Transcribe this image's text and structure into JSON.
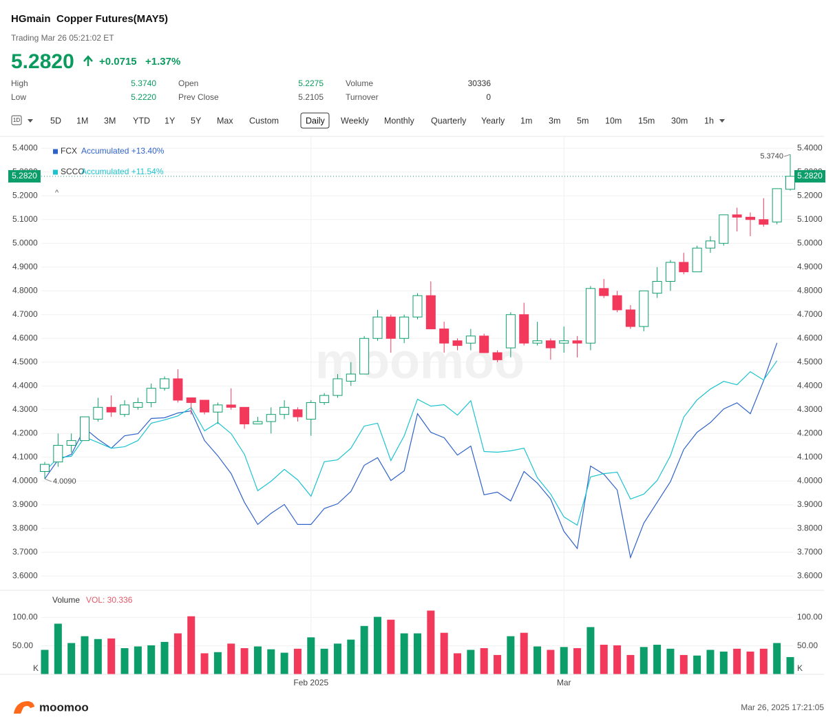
{
  "header": {
    "symbol": "HGmain",
    "name": "Copper Futures(MAY5)",
    "status": "Trading Mar 26 05:21:02 ET",
    "price": "5.2820",
    "change": "+0.0715",
    "change_pct": "+1.37%",
    "stats": [
      {
        "label": "High",
        "value": "5.3740",
        "color": "#0a9a5e"
      },
      {
        "label": "Open",
        "value": "5.2275",
        "color": "#0a9a5e"
      },
      {
        "label": "Volume",
        "value": "30336",
        "color": "#333333"
      },
      {
        "label": "Low",
        "value": "5.2220",
        "color": "#0a9a5e"
      },
      {
        "label": "Prev Close",
        "value": "5.2105",
        "color": "#555555"
      },
      {
        "label": "Turnover",
        "value": "0",
        "color": "#333333"
      }
    ]
  },
  "toolbar": {
    "icon": "1D",
    "ranges": [
      "5D",
      "1M",
      "3M",
      "YTD",
      "1Y",
      "5Y",
      "Max",
      "Custom"
    ],
    "intervals": [
      "Daily",
      "Weekly",
      "Monthly",
      "Quarterly",
      "Yearly",
      "1m",
      "3m",
      "5m",
      "10m",
      "15m",
      "30m",
      "1h"
    ],
    "active": "Daily"
  },
  "watermark": "moomoo",
  "footer": {
    "brand": "moomoo",
    "timestamp": "Mar 26, 2025 17:21:05"
  },
  "chart_data": [
    {
      "type": "candlestick",
      "categories": [
        null,
        null,
        null,
        null,
        null,
        null,
        null,
        null,
        null,
        null,
        null,
        null,
        null,
        null,
        null,
        null,
        null,
        null,
        null,
        null,
        "Feb 2025",
        null,
        null,
        null,
        null,
        null,
        null,
        null,
        null,
        null,
        null,
        null,
        null,
        null,
        null,
        null,
        null,
        null,
        null,
        "Mar",
        null,
        null,
        null,
        null,
        null,
        null,
        null,
        null,
        null,
        null,
        null,
        null,
        null,
        null,
        null,
        null,
        null
      ],
      "open": [
        4.04,
        4.08,
        4.15,
        4.17,
        4.26,
        4.31,
        4.28,
        4.31,
        4.33,
        4.39,
        4.43,
        4.35,
        4.34,
        4.29,
        4.32,
        4.31,
        4.24,
        4.25,
        4.28,
        4.3,
        4.26,
        4.33,
        4.36,
        4.42,
        4.45,
        4.6,
        4.69,
        4.6,
        4.69,
        4.78,
        4.64,
        4.59,
        4.58,
        4.61,
        4.54,
        4.56,
        4.7,
        4.58,
        4.59,
        4.58,
        4.59,
        4.58,
        4.81,
        4.78,
        4.72,
        4.65,
        4.79,
        4.84,
        4.92,
        4.88,
        4.98,
        5.0,
        5.12,
        5.11,
        5.1,
        5.09,
        5.2275
      ],
      "high": [
        4.08,
        4.2,
        4.2,
        4.27,
        4.35,
        4.36,
        4.34,
        4.35,
        4.41,
        4.44,
        4.47,
        4.35,
        4.34,
        4.33,
        4.39,
        4.31,
        4.27,
        4.31,
        4.34,
        4.31,
        4.34,
        4.37,
        4.45,
        4.5,
        4.61,
        4.72,
        4.7,
        4.7,
        4.79,
        4.84,
        4.67,
        4.6,
        4.64,
        4.62,
        4.55,
        4.71,
        4.75,
        4.67,
        4.6,
        4.65,
        4.61,
        4.82,
        4.85,
        4.8,
        4.74,
        4.8,
        4.9,
        4.93,
        4.96,
        4.99,
        5.03,
        5.12,
        5.15,
        5.13,
        5.19,
        5.23,
        5.374
      ],
      "low": [
        4.009,
        4.06,
        4.12,
        4.17,
        4.25,
        4.27,
        4.27,
        4.3,
        4.31,
        4.38,
        4.33,
        4.28,
        4.28,
        4.24,
        4.3,
        4.22,
        4.24,
        4.2,
        4.26,
        4.25,
        4.19,
        4.32,
        4.35,
        4.4,
        4.45,
        4.59,
        4.54,
        4.58,
        4.68,
        4.64,
        4.54,
        4.55,
        4.55,
        4.54,
        4.5,
        4.52,
        4.57,
        4.57,
        4.51,
        4.54,
        4.52,
        4.55,
        4.77,
        4.71,
        4.64,
        4.63,
        4.77,
        4.8,
        4.87,
        4.88,
        4.96,
        4.99,
        5.05,
        5.03,
        5.07,
        5.08,
        5.222
      ],
      "close": [
        4.07,
        4.15,
        4.17,
        4.27,
        4.31,
        4.29,
        4.32,
        4.33,
        4.39,
        4.43,
        4.34,
        4.33,
        4.29,
        4.32,
        4.31,
        4.24,
        4.25,
        4.28,
        4.31,
        4.27,
        4.33,
        4.36,
        4.43,
        4.45,
        4.6,
        4.69,
        4.6,
        4.69,
        4.78,
        4.64,
        4.58,
        4.57,
        4.61,
        4.54,
        4.51,
        4.7,
        4.58,
        4.59,
        4.56,
        4.59,
        4.58,
        4.81,
        4.78,
        4.72,
        4.65,
        4.8,
        4.84,
        4.92,
        4.88,
        4.98,
        5.01,
        5.12,
        5.11,
        5.1,
        5.08,
        5.23,
        5.282
      ],
      "up_color": "#0c9e6a",
      "down_color": "#f2395b",
      "series": [
        {
          "name": "FCX",
          "label": "Accumulated +13.40%",
          "color": "#2f62c8",
          "values": [
            4.009,
            4.089,
            4.112,
            4.222,
            4.176,
            4.138,
            4.19,
            4.199,
            4.263,
            4.266,
            4.286,
            4.295,
            4.17,
            4.106,
            4.031,
            3.91,
            3.817,
            3.864,
            3.901,
            3.817,
            3.817,
            3.884,
            3.904,
            3.956,
            4.066,
            4.098,
            4.002,
            4.043,
            4.283,
            4.205,
            4.182,
            4.109,
            4.147,
            3.942,
            3.953,
            3.916,
            4.04,
            3.991,
            3.924,
            3.788,
            3.716,
            4.063,
            4.028,
            3.962,
            3.678,
            3.823,
            3.91,
            3.997,
            4.133,
            4.205,
            4.246,
            4.303,
            4.329,
            4.283,
            4.422,
            4.581,
            null
          ]
        },
        {
          "name": "SCCO",
          "label": "Accumulated +11.54%",
          "color": "#1cc3cf",
          "values": [
            4.04,
            4.098,
            4.104,
            4.185,
            4.162,
            4.138,
            4.144,
            4.17,
            4.243,
            4.257,
            4.274,
            4.309,
            4.211,
            4.246,
            4.199,
            4.112,
            3.959,
            3.999,
            4.049,
            4.005,
            3.936,
            4.081,
            4.089,
            4.138,
            4.231,
            4.243,
            4.086,
            4.19,
            4.344,
            4.315,
            4.321,
            4.277,
            4.338,
            4.124,
            4.121,
            4.127,
            4.138,
            4.014,
            3.945,
            3.849,
            3.814,
            4.017,
            4.031,
            4.037,
            3.924,
            3.945,
            4.002,
            4.106,
            4.269,
            4.341,
            4.387,
            4.419,
            4.405,
            4.46,
            4.425,
            4.506,
            null
          ]
        }
      ],
      "ylim": [
        3.54,
        5.45
      ],
      "yticks": [
        {
          "value": 3.6,
          "label": "3.6000"
        },
        {
          "value": 3.7,
          "label": "3.7000"
        },
        {
          "value": 3.8,
          "label": "3.8000"
        },
        {
          "value": 3.9,
          "label": "3.9000"
        },
        {
          "value": 4.0,
          "label": "4.0000"
        },
        {
          "value": 4.1,
          "label": "4.1000"
        },
        {
          "value": 4.2,
          "label": "4.2000"
        },
        {
          "value": 4.3,
          "label": "4.3000"
        },
        {
          "value": 4.4,
          "label": "4.4000"
        },
        {
          "value": 4.5,
          "label": "4.5000"
        },
        {
          "value": 4.6,
          "label": "4.6000"
        },
        {
          "value": 4.7,
          "label": "4.7000"
        },
        {
          "value": 4.8,
          "label": "4.8000"
        },
        {
          "value": 4.9,
          "label": "4.9000"
        },
        {
          "value": 5.0,
          "label": "5.0000"
        },
        {
          "value": 5.1,
          "label": "5.1000"
        },
        {
          "value": 5.2,
          "label": "5.2000"
        },
        {
          "value": 5.3,
          "label": "5.3000"
        },
        {
          "value": 5.4,
          "label": "5.4000"
        }
      ],
      "last_price": {
        "value": 5.282,
        "label": "5.2820"
      },
      "annotations": [
        {
          "index": 56,
          "value": 5.374,
          "label": "5.3740"
        },
        {
          "index": 0,
          "value": 4.009,
          "label": "4.0090"
        }
      ],
      "grid": true
    },
    {
      "type": "bar",
      "title": "Volume",
      "last_label": "VOL: 30.336",
      "unit": "K",
      "values": [
        43,
        89,
        55,
        67,
        62,
        63,
        46,
        49,
        51,
        57,
        72,
        102,
        37,
        39,
        54,
        46,
        49,
        44,
        38,
        45,
        65,
        45,
        54,
        61,
        85,
        101,
        96,
        72,
        72,
        112,
        73,
        37,
        43,
        46,
        34,
        67,
        73,
        49,
        43,
        48,
        46,
        83,
        52,
        51,
        34,
        48,
        52,
        45,
        34,
        33,
        43,
        40,
        45,
        40,
        45,
        55,
        30.336
      ],
      "ylim": [
        0,
        144
      ],
      "yticks": [
        {
          "value": 50,
          "label": "50.00"
        },
        {
          "value": 100,
          "label": "100.00"
        }
      ],
      "grid": true
    }
  ]
}
